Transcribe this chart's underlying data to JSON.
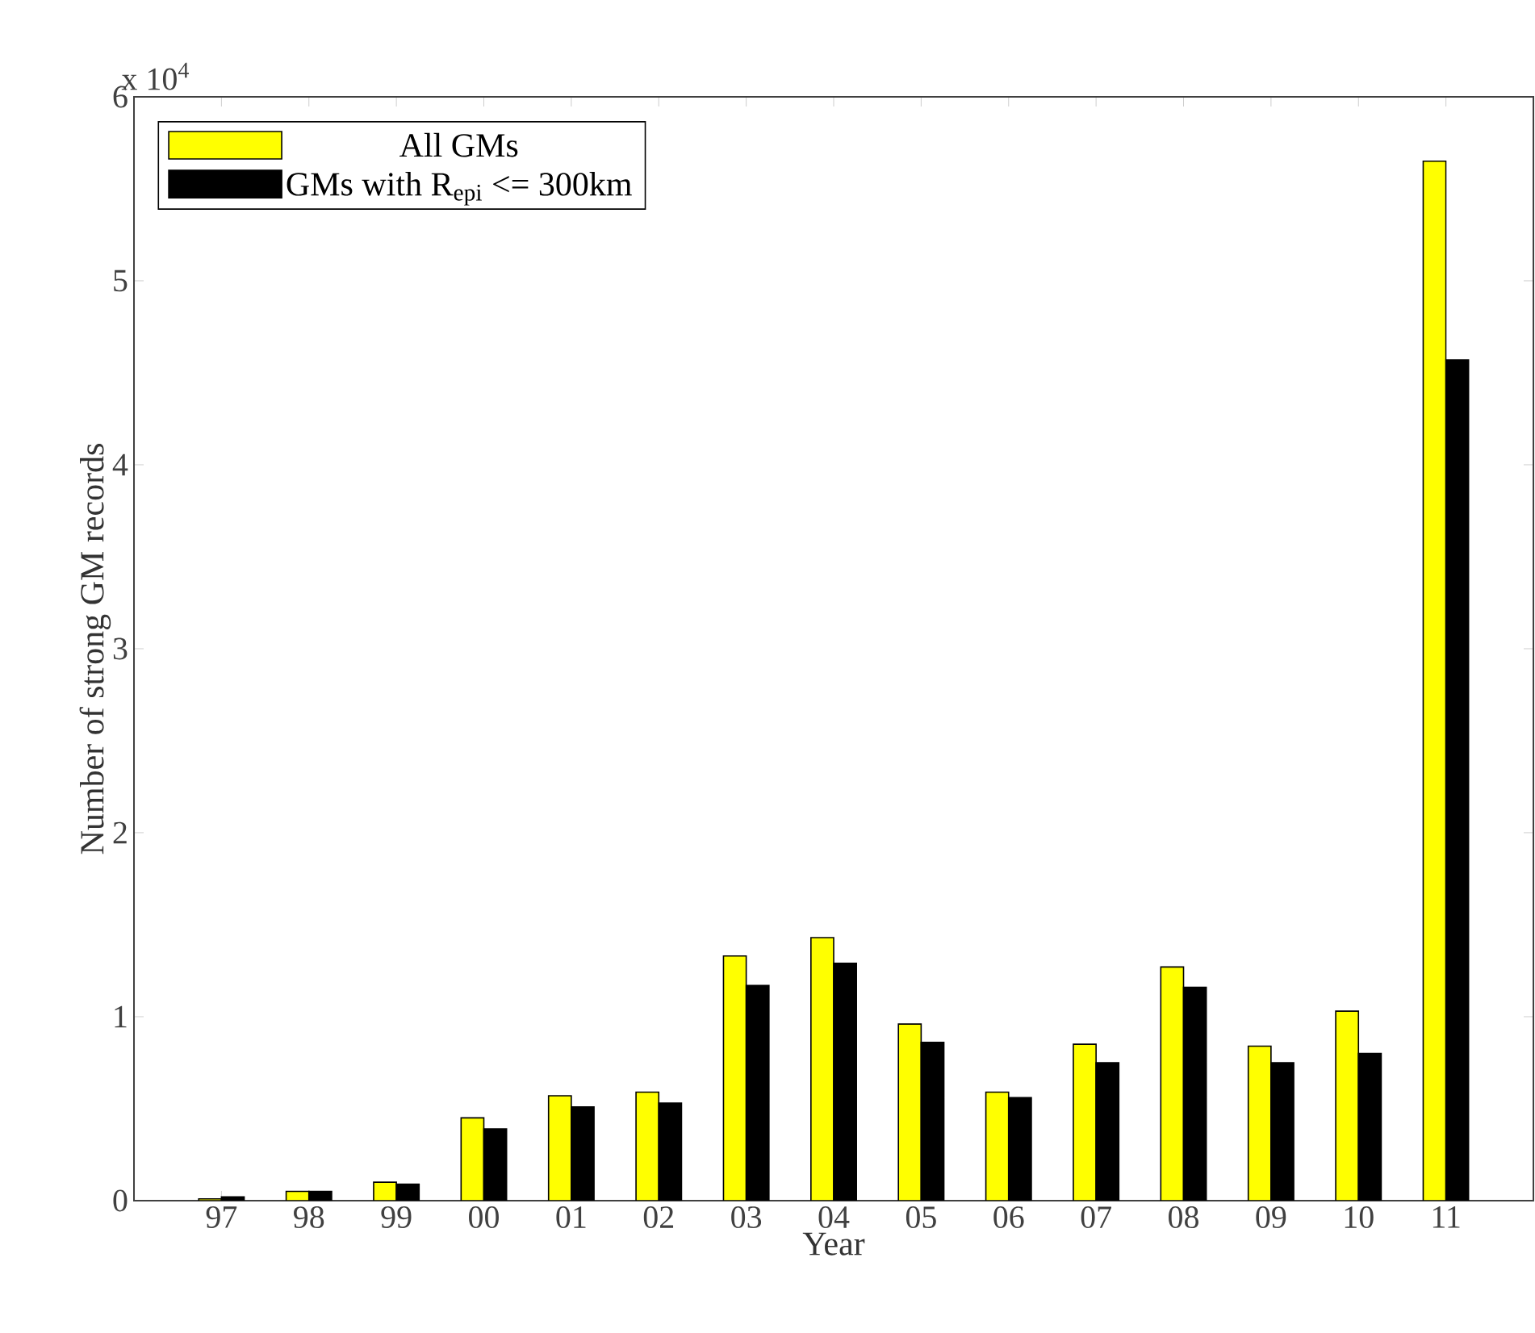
{
  "chart_data": {
    "type": "bar",
    "xlabel": "Year",
    "ylabel": "Number of strong GM records",
    "annotations": [
      "x 10$^{4}$"
    ],
    "categories": [
      "97",
      "98",
      "99",
      "00",
      "01",
      "02",
      "03",
      "04",
      "05",
      "06",
      "07",
      "08",
      "09",
      "10",
      "11"
    ],
    "series": [
      {
        "name": "All GMs",
        "color": "#ffff00",
        "values": [
          0.01,
          0.05,
          0.1,
          0.45,
          0.57,
          0.59,
          1.33,
          1.43,
          0.96,
          0.59,
          0.85,
          1.27,
          0.84,
          1.03,
          5.65
        ]
      },
      {
        "name": "GMs with R$_{epi}$ <= 300km",
        "color": "#000000",
        "values": [
          0.02,
          0.05,
          0.09,
          0.39,
          0.51,
          0.53,
          1.17,
          1.29,
          0.86,
          0.56,
          0.75,
          1.16,
          0.75,
          0.8,
          4.57
        ]
      }
    ],
    "ylim": [
      0,
      6
    ],
    "yticks": [
      0,
      1,
      2,
      3,
      4,
      5,
      6
    ],
    "legend": "top left"
  }
}
